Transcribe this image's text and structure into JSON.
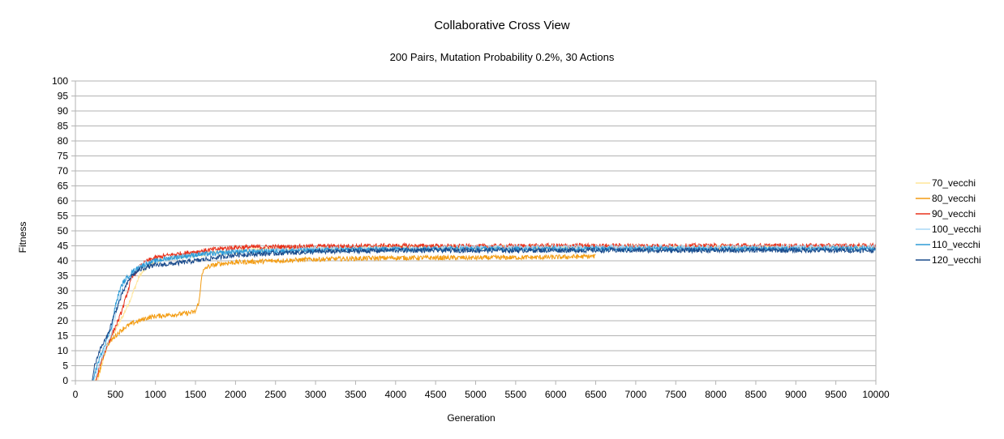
{
  "chart_data": {
    "type": "line",
    "title": "Collaborative Cross View",
    "subtitle": "200 Pairs, Mutation Probability 0.2%, 30 Actions",
    "xlabel": "Generation",
    "ylabel": "Fitness",
    "xlim": [
      0,
      10000
    ],
    "ylim": [
      0,
      100
    ],
    "xticks": [
      0,
      500,
      1000,
      1500,
      2000,
      2500,
      3000,
      3500,
      4000,
      4500,
      5000,
      5500,
      6000,
      6500,
      7000,
      7500,
      8000,
      8500,
      9000,
      9500,
      10000
    ],
    "yticks": [
      0,
      5,
      10,
      15,
      20,
      25,
      30,
      35,
      40,
      45,
      50,
      55,
      60,
      65,
      70,
      75,
      80,
      85,
      90,
      95,
      100
    ],
    "grid": true,
    "legend_position": "right",
    "series": [
      {
        "name": "70_vecchi",
        "color": "#ffe599",
        "points": [
          [
            280,
            0
          ],
          [
            330,
            5
          ],
          [
            400,
            12
          ],
          [
            500,
            17
          ],
          [
            600,
            22
          ],
          [
            700,
            28
          ],
          [
            800,
            35
          ],
          [
            900,
            38
          ],
          [
            1000,
            40
          ],
          [
            1200,
            41
          ],
          [
            1500,
            42
          ],
          [
            2000,
            43
          ],
          [
            2500,
            44
          ],
          [
            3000,
            44
          ],
          [
            4000,
            44.5
          ],
          [
            5000,
            44.5
          ],
          [
            6000,
            44.5
          ],
          [
            7000,
            44.5
          ],
          [
            8000,
            44.5
          ],
          [
            9000,
            44.5
          ],
          [
            10000,
            44.5
          ]
        ]
      },
      {
        "name": "80_vecchi",
        "color": "#f39c12",
        "points": [
          [
            250,
            0
          ],
          [
            300,
            3
          ],
          [
            350,
            8
          ],
          [
            400,
            12
          ],
          [
            500,
            15
          ],
          [
            600,
            17.5
          ],
          [
            700,
            19
          ],
          [
            800,
            20
          ],
          [
            900,
            21
          ],
          [
            1000,
            21.5
          ],
          [
            1200,
            22
          ],
          [
            1400,
            22.5
          ],
          [
            1500,
            23
          ],
          [
            1550,
            27
          ],
          [
            1580,
            36
          ],
          [
            1650,
            38
          ],
          [
            1800,
            39
          ],
          [
            2000,
            39.5
          ],
          [
            2500,
            40
          ],
          [
            3000,
            40.5
          ],
          [
            4000,
            41
          ],
          [
            5000,
            41
          ],
          [
            6000,
            41.2
          ],
          [
            6500,
            41.5
          ]
        ]
      },
      {
        "name": "90_vecchi",
        "color": "#e8321c",
        "points": [
          [
            260,
            0
          ],
          [
            300,
            5
          ],
          [
            400,
            12
          ],
          [
            500,
            18
          ],
          [
            550,
            21
          ],
          [
            600,
            25
          ],
          [
            700,
            34
          ],
          [
            800,
            38
          ],
          [
            900,
            40
          ],
          [
            1000,
            41
          ],
          [
            1200,
            42
          ],
          [
            1500,
            43
          ],
          [
            1800,
            44
          ],
          [
            2000,
            44.5
          ],
          [
            3000,
            44.8
          ],
          [
            4000,
            45
          ],
          [
            5000,
            44.8
          ],
          [
            6000,
            45
          ],
          [
            7000,
            45
          ],
          [
            8000,
            45
          ],
          [
            9000,
            45
          ],
          [
            10000,
            45
          ]
        ]
      },
      {
        "name": "100_vecchi",
        "color": "#a9d8f5",
        "points": [
          [
            230,
            0
          ],
          [
            280,
            4
          ],
          [
            350,
            9
          ],
          [
            450,
            16
          ],
          [
            500,
            22
          ],
          [
            550,
            28
          ],
          [
            600,
            32
          ],
          [
            700,
            36
          ],
          [
            800,
            38
          ],
          [
            900,
            39.5
          ],
          [
            1000,
            40
          ],
          [
            1200,
            41
          ],
          [
            1500,
            42
          ],
          [
            2000,
            43
          ],
          [
            3000,
            44
          ],
          [
            4000,
            44
          ],
          [
            5000,
            44.5
          ],
          [
            6000,
            44.5
          ],
          [
            7000,
            44.5
          ],
          [
            8000,
            44.5
          ],
          [
            9000,
            44.5
          ],
          [
            10000,
            44.5
          ]
        ]
      },
      {
        "name": "110_vecchi",
        "color": "#2e9bd6",
        "points": [
          [
            220,
            0
          ],
          [
            270,
            5
          ],
          [
            350,
            11
          ],
          [
            450,
            18
          ],
          [
            500,
            25
          ],
          [
            550,
            30
          ],
          [
            600,
            33
          ],
          [
            700,
            36
          ],
          [
            800,
            38
          ],
          [
            900,
            39
          ],
          [
            1000,
            40
          ],
          [
            1200,
            41
          ],
          [
            1500,
            42
          ],
          [
            2000,
            43
          ],
          [
            3000,
            43.5
          ],
          [
            4000,
            44
          ],
          [
            5000,
            44
          ],
          [
            6000,
            44
          ],
          [
            7000,
            44
          ],
          [
            8000,
            44
          ],
          [
            9000,
            44
          ],
          [
            10000,
            44
          ]
        ]
      },
      {
        "name": "120_vecchi",
        "color": "#1a4b8c",
        "points": [
          [
            210,
            0
          ],
          [
            240,
            5
          ],
          [
            300,
            10
          ],
          [
            400,
            15
          ],
          [
            450,
            19
          ],
          [
            500,
            23
          ],
          [
            600,
            30
          ],
          [
            700,
            35
          ],
          [
            800,
            37
          ],
          [
            900,
            38
          ],
          [
            1000,
            38.5
          ],
          [
            1200,
            39
          ],
          [
            1500,
            40
          ],
          [
            2000,
            42
          ],
          [
            3000,
            43
          ],
          [
            4000,
            43.5
          ],
          [
            5000,
            43.5
          ],
          [
            6000,
            43.5
          ],
          [
            7000,
            43.5
          ],
          [
            8000,
            43.5
          ],
          [
            9000,
            43.5
          ],
          [
            10000,
            43.5
          ]
        ]
      }
    ]
  }
}
